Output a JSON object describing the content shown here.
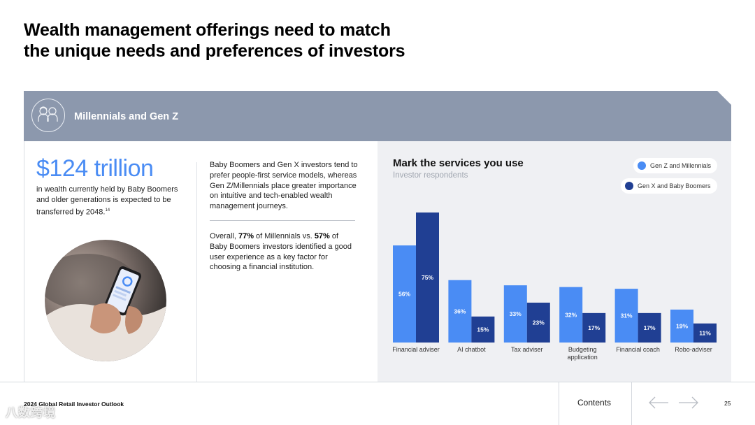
{
  "header": {
    "title_line1": "Wealth management offerings need to match",
    "title_line2": "the unique needs and preferences of investors"
  },
  "band": {
    "label": "Millennials and Gen Z",
    "icon": "people-icon"
  },
  "left": {
    "big_stat": "$124 trillion",
    "stat_desc": "in wealth currently held by Baby Boomers and older generations is expected to be transferred by 2048.",
    "stat_footnote": "14",
    "para1": "Baby Boomers and Gen X investors tend to prefer people-first service models, whereas Gen Z/Millennials place greater importance on intuitive and tech-enabled wealth management journeys.",
    "para2_a": "Overall, ",
    "para2_b": "77%",
    "para2_c": " of Millennials vs. ",
    "para2_d": "57%",
    "para2_e": " of Baby Boomers investors identified a good user experience as a key factor for choosing a financial institution."
  },
  "chart_data": {
    "type": "bar",
    "title": "Mark the services you use",
    "subtitle": "Investor respondents",
    "categories": [
      "Financial adviser",
      "AI chatbot",
      "Tax adviser",
      "Budgeting application",
      "Financial coach",
      "Robo-adviser"
    ],
    "category_lines": [
      [
        "Financial adviser"
      ],
      [
        "AI chatbot"
      ],
      [
        "Tax adviser"
      ],
      [
        "Budgeting",
        "application"
      ],
      [
        "Financial coach"
      ],
      [
        "Robo-adviser"
      ]
    ],
    "series": [
      {
        "name": "Gen Z and Millennials",
        "color": "#4a8cf4",
        "values": [
          56,
          36,
          33,
          32,
          31,
          19
        ]
      },
      {
        "name": "Gen X and Baby Boomers",
        "color": "#203f93",
        "values": [
          75,
          15,
          23,
          17,
          17,
          11
        ]
      }
    ],
    "value_suffix": "%",
    "legend_position": "top-right",
    "grid": false
  },
  "footer": {
    "report_title": "2024 Global Retail Investor Outlook",
    "contents_label": "Contents",
    "page_number": "25"
  },
  "watermark": "八数跨境"
}
